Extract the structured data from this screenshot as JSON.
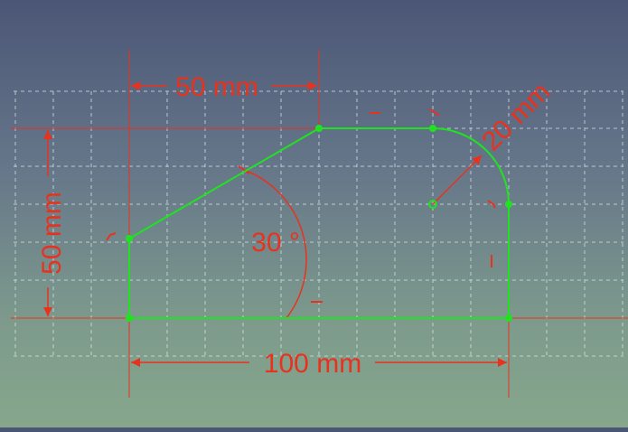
{
  "sketch": {
    "colors": {
      "geometry": "#1fe31f",
      "constraint": "#e8321e",
      "grid": "#dde3e6",
      "background_top": "#4b5676",
      "background_bottom": "#86a78c"
    },
    "dimensions": {
      "top_width": "50 mm",
      "left_height": "50 mm",
      "bottom_width": "100 mm",
      "arc_radius": "20 mm",
      "angle": "30 °"
    }
  }
}
